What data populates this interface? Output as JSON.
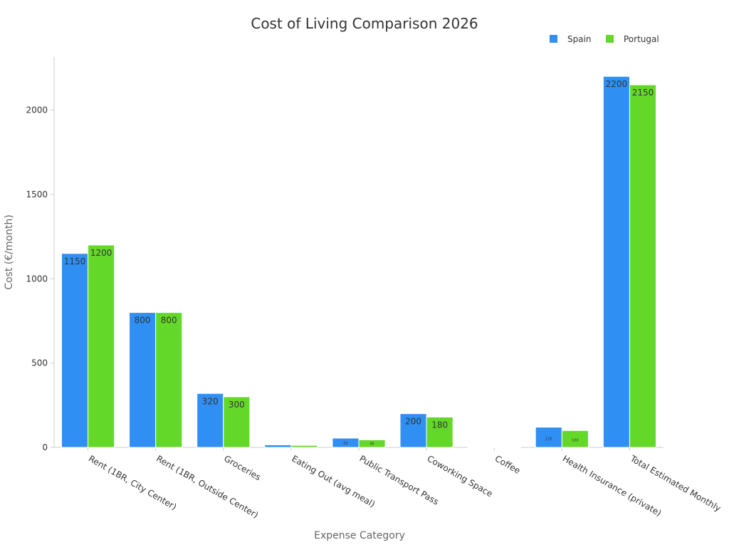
{
  "chart_data": {
    "type": "bar",
    "title": "Cost of Living Comparison 2026",
    "xlabel": "Expense Category",
    "ylabel": "Cost (€/month)",
    "categories": [
      "Rent (1BR, City Center)",
      "Rent (1BR, Outside Center)",
      "Groceries",
      "Eating Out (avg meal)",
      "Public Transport Pass",
      "Coworking Space",
      "Coffee",
      "Health Insurance (private)",
      "Total Estimated Monthly"
    ],
    "series": [
      {
        "name": "Spain",
        "color": "#2f8ff2",
        "values": [
          1150,
          800,
          320,
          15,
          55,
          200,
          2,
          120,
          2200
        ],
        "labels": [
          "1150",
          "800",
          "320",
          "",
          "55",
          "200",
          "",
          "120",
          "2200"
        ]
      },
      {
        "name": "Portugal",
        "color": "#64d828",
        "values": [
          1200,
          800,
          300,
          12,
          45,
          180,
          1.5,
          100,
          2150
        ],
        "labels": [
          "1200",
          "800",
          "300",
          "",
          "45",
          "180",
          "",
          "100",
          "2150"
        ]
      }
    ],
    "yticks": [
      0,
      500,
      1000,
      1500,
      2000
    ],
    "ylim": [
      0,
      2315
    ],
    "legend_position": "top-right",
    "grid": false
  }
}
